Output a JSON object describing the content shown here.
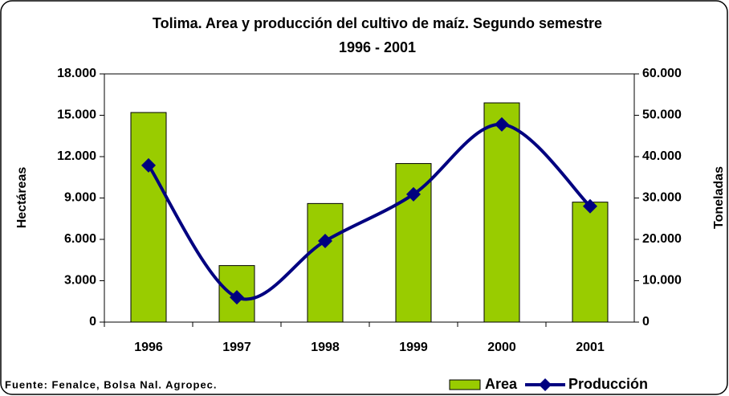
{
  "chart_data": {
    "type": "combo",
    "title": "Tolima. Area y producción del cultivo de maíz. Segundo semestre",
    "subtitle": "1996 - 2001",
    "y_label": "Hectáreas",
    "y2_label": "Toneladas",
    "source": "Fuente: Fenalce, Bolsa Nal. Agropec.",
    "categories": [
      "1996",
      "1997",
      "1998",
      "1999",
      "2000",
      "2001"
    ],
    "series": [
      {
        "name": "Area",
        "type": "bar",
        "color": "#99cc00",
        "values": [
          15200,
          4100,
          8600,
          11500,
          15900,
          8700
        ]
      },
      {
        "name": "Producción",
        "type": "line",
        "axis": "y2",
        "color": "#000080",
        "values": [
          37900,
          6000,
          19600,
          30900,
          47800,
          28000
        ]
      }
    ],
    "ylim": [
      0,
      18000
    ],
    "yticks": [
      0,
      {
        "value": 3000,
        "label": "3.000"
      },
      {
        "value": 6000,
        "label": "6.000"
      },
      {
        "value": 9000,
        "label": "9.000"
      },
      {
        "value": 12000,
        "label": "12.000"
      },
      {
        "value": 15000,
        "label": "15.000"
      },
      {
        "value": 18000,
        "label": "18.000"
      }
    ],
    "y2lim": [
      0,
      60000
    ],
    "y2ticks": [
      0,
      {
        "value": 10000,
        "label": "10.000"
      },
      {
        "value": 20000,
        "label": "20.000"
      },
      {
        "value": 30000,
        "label": "30.000"
      },
      {
        "value": 40000,
        "label": "40.000"
      },
      {
        "value": 50000,
        "label": "50.000"
      },
      {
        "value": 60000,
        "label": "60.000"
      }
    ],
    "grid": false,
    "legend": "bottom-right"
  }
}
